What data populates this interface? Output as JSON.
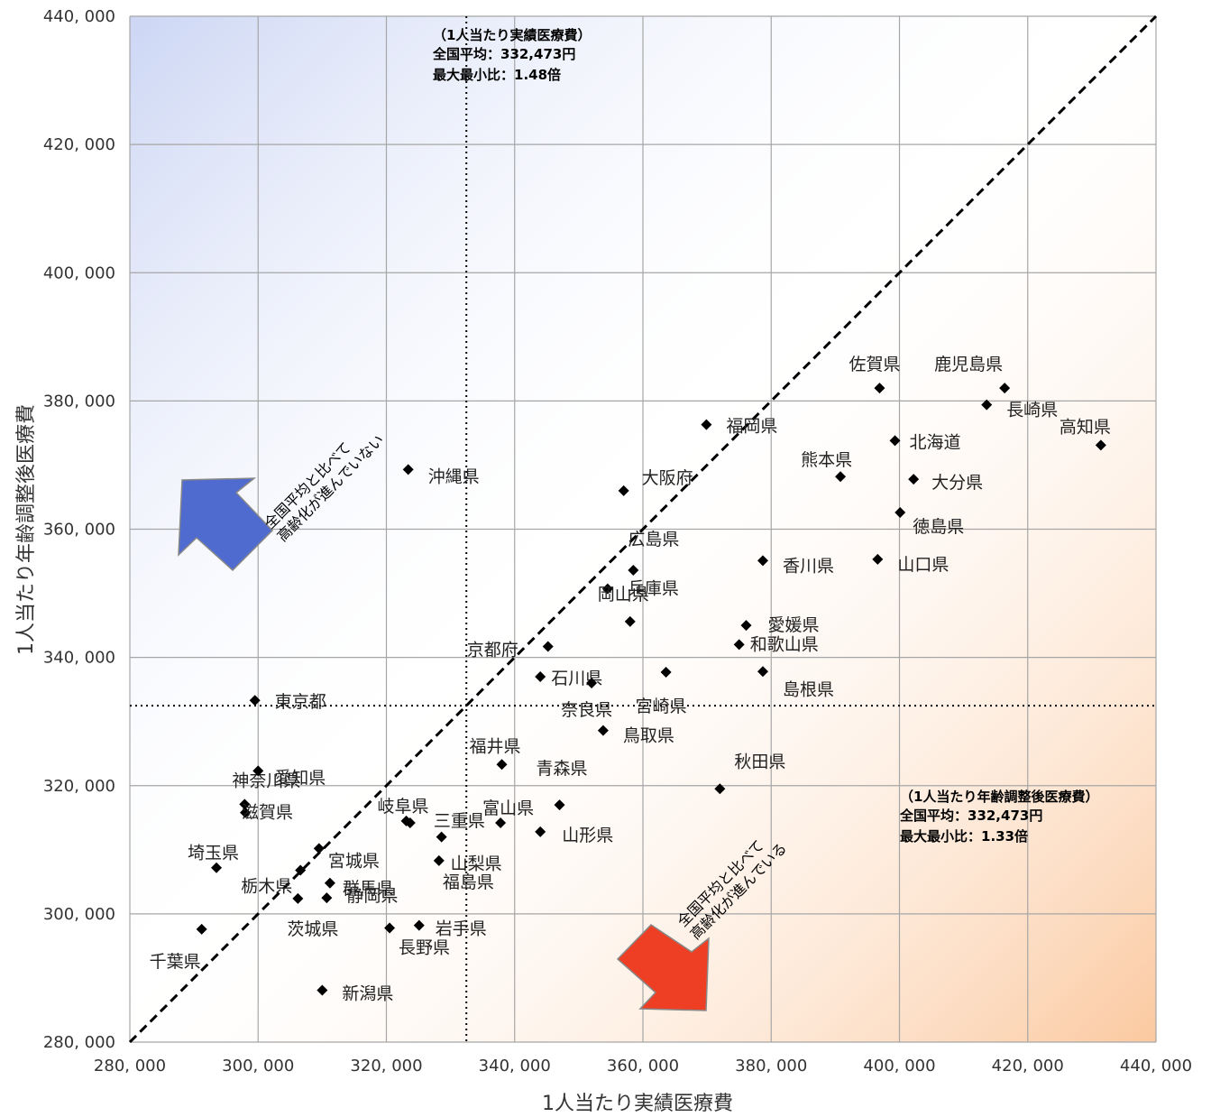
{
  "chart_data": {
    "type": "scatter",
    "xlabel": "1人当たり実績医療費",
    "ylabel": "1人当たり年齢調整後医療費",
    "xlim": [
      280000,
      440000
    ],
    "ylim": [
      280000,
      440000
    ],
    "x_ticks": [
      "280, 000",
      "300, 000",
      "320, 000",
      "340, 000",
      "360, 000",
      "380, 000",
      "400, 000",
      "420, 000",
      "440, 000"
    ],
    "y_ticks": [
      "280, 000",
      "300, 000",
      "320, 000",
      "340, 000",
      "360, 000",
      "380, 000",
      "400, 000",
      "420, 000",
      "440, 000"
    ],
    "grid": true,
    "reference_lines": {
      "x_avg": 332473,
      "y_avg": 332473,
      "diagonal": true
    },
    "notes": {
      "top": {
        "line1": "（1人当たり実績医療費）",
        "line2": "全国平均：332,473円",
        "line3": "最大最小比：1.48倍"
      },
      "right": {
        "line1": "（1人当たり年齢調整後医療費）",
        "line2": "全国平均：332,473円",
        "line3": "最大最小比：1.33倍"
      }
    },
    "arrows": {
      "upper": {
        "line1": "全国平均と比べて",
        "line2": "高齢化が進んでいない"
      },
      "lower": {
        "line1": "全国平均と比べて",
        "line2": "高齢化が進んでいる"
      }
    },
    "points": [
      {
        "label": "北海道",
        "x": 399300,
        "y": 373800
      },
      {
        "label": "青森県",
        "x": 347000,
        "y": 317000
      },
      {
        "label": "岩手県",
        "x": 325100,
        "y": 298200
      },
      {
        "label": "宮城県",
        "x": 309500,
        "y": 310200
      },
      {
        "label": "秋田県",
        "x": 372000,
        "y": 319500
      },
      {
        "label": "山形県",
        "x": 344000,
        "y": 312800
      },
      {
        "label": "福島県",
        "x": 328200,
        "y": 308300
      },
      {
        "label": "茨城県",
        "x": 306200,
        "y": 302400
      },
      {
        "label": "栃木県",
        "x": 306600,
        "y": 306800
      },
      {
        "label": "群馬県",
        "x": 311200,
        "y": 304800
      },
      {
        "label": "埼玉県",
        "x": 293500,
        "y": 307200
      },
      {
        "label": "千葉県",
        "x": 291200,
        "y": 297600
      },
      {
        "label": "東京都",
        "x": 299500,
        "y": 333300
      },
      {
        "label": "神奈川県",
        "x": 297900,
        "y": 317100
      },
      {
        "label": "新潟県",
        "x": 310000,
        "y": 288100
      },
      {
        "label": "富山県",
        "x": 337800,
        "y": 314200
      },
      {
        "label": "石川県",
        "x": 344000,
        "y": 337000
      },
      {
        "label": "福井県",
        "x": 338000,
        "y": 323300
      },
      {
        "label": "山梨県",
        "x": 328600,
        "y": 312000
      },
      {
        "label": "長野県",
        "x": 320500,
        "y": 297800
      },
      {
        "label": "岐阜県",
        "x": 323100,
        "y": 314500
      },
      {
        "label": "静岡県",
        "x": 310700,
        "y": 302500
      },
      {
        "label": "愛知県",
        "x": 300000,
        "y": 322300
      },
      {
        "label": "三重県",
        "x": 323700,
        "y": 314200
      },
      {
        "label": "滋賀県",
        "x": 298000,
        "y": 315800
      },
      {
        "label": "京都府",
        "x": 345200,
        "y": 341700
      },
      {
        "label": "大阪府",
        "x": 357000,
        "y": 366000
      },
      {
        "label": "兵庫県",
        "x": 354500,
        "y": 350700
      },
      {
        "label": "奈良県",
        "x": 352000,
        "y": 336000
      },
      {
        "label": "和歌山県",
        "x": 375000,
        "y": 342000
      },
      {
        "label": "鳥取県",
        "x": 353800,
        "y": 328600
      },
      {
        "label": "島根県",
        "x": 378700,
        "y": 337800
      },
      {
        "label": "岡山県",
        "x": 358000,
        "y": 345600
      },
      {
        "label": "広島県",
        "x": 358500,
        "y": 353600
      },
      {
        "label": "山口県",
        "x": 396600,
        "y": 355300
      },
      {
        "label": "徳島県",
        "x": 400100,
        "y": 362600
      },
      {
        "label": "香川県",
        "x": 378700,
        "y": 355100
      },
      {
        "label": "愛媛県",
        "x": 376100,
        "y": 345000
      },
      {
        "label": "高知県",
        "x": 431400,
        "y": 373100
      },
      {
        "label": "福岡県",
        "x": 369900,
        "y": 376300
      },
      {
        "label": "佐賀県",
        "x": 396900,
        "y": 382000
      },
      {
        "label": "長崎県",
        "x": 413600,
        "y": 379400
      },
      {
        "label": "熊本県",
        "x": 390800,
        "y": 368200
      },
      {
        "label": "大分県",
        "x": 402200,
        "y": 367800
      },
      {
        "label": "宮崎県",
        "x": 363600,
        "y": 337700
      },
      {
        "label": "鹿児島県",
        "x": 416400,
        "y": 382000
      },
      {
        "label": "沖縄県",
        "x": 323400,
        "y": 369300
      }
    ]
  },
  "colors": {
    "upper_arrow": "#4f6bd0",
    "lower_arrow": "#ee3f25",
    "upper_bg": "#ccd6f4",
    "lower_bg": "#fbc9a0"
  }
}
